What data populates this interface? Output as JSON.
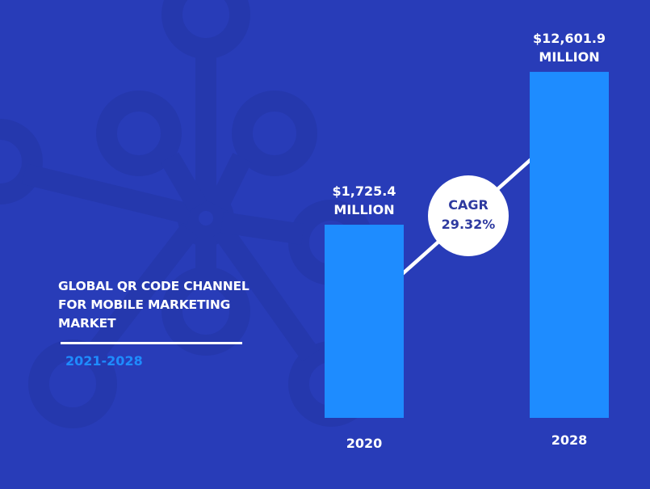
{
  "title_lines": [
    "GLOBAL QR CODE CHANNEL",
    "FOR MOBILE MARKETING",
    "MARKET"
  ],
  "period": "2021-2028",
  "colors": {
    "background": "#283cb8",
    "bar": "#1e8cff",
    "accent_text": "#1e8cff",
    "cagr_text": "#2e3aa0"
  },
  "chart_data": {
    "type": "bar",
    "categories": [
      "2020",
      "2028"
    ],
    "values": [
      1725.4,
      12601.9
    ],
    "value_labels": [
      [
        "$1,725.4",
        "MILLION"
      ],
      [
        "$12,601.9",
        "MILLION"
      ]
    ],
    "unit": "USD million",
    "annotation": {
      "label": "CAGR",
      "value": "29.32%"
    },
    "grid": false
  }
}
